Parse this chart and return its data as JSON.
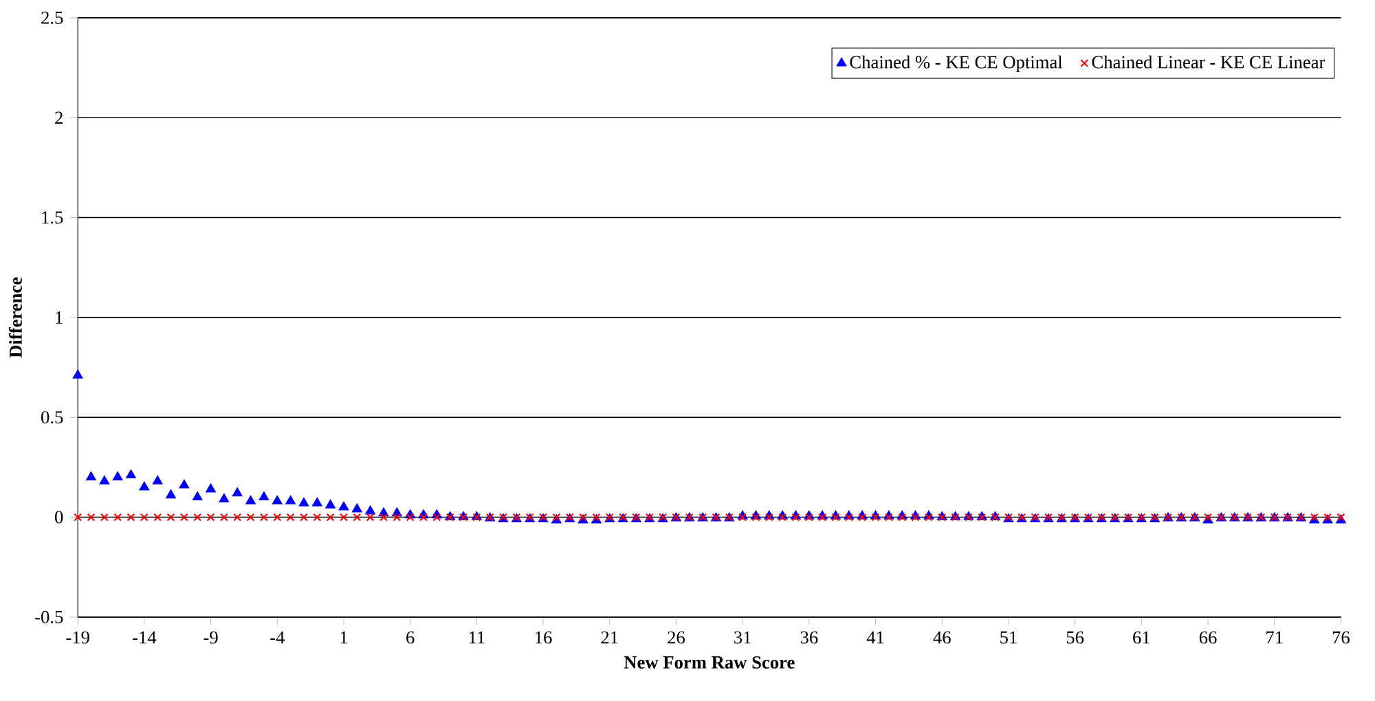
{
  "chart_data": {
    "type": "scatter",
    "xlabel": "New Form Raw Score",
    "ylabel": "Difference",
    "xlim": [
      -19,
      76
    ],
    "xticks": [
      -19,
      -14,
      -9,
      -4,
      1,
      6,
      11,
      16,
      21,
      26,
      31,
      36,
      41,
      46,
      51,
      56,
      61,
      66,
      71,
      76
    ],
    "ylim": [
      -0.5,
      2.5
    ],
    "yticks": [
      -0.5,
      0,
      0.5,
      1,
      1.5,
      2,
      2.5
    ],
    "grid": "y",
    "legend": "top right",
    "x": [
      -19,
      -18,
      -17,
      -16,
      -15,
      -14,
      -13,
      -12,
      -11,
      -10,
      -9,
      -8,
      -7,
      -6,
      -5,
      -4,
      -3,
      -2,
      -1,
      0,
      1,
      2,
      3,
      4,
      5,
      6,
      7,
      8,
      9,
      10,
      11,
      12,
      13,
      14,
      15,
      16,
      17,
      18,
      19,
      20,
      21,
      22,
      23,
      24,
      25,
      26,
      27,
      28,
      29,
      30,
      31,
      32,
      33,
      34,
      35,
      36,
      37,
      38,
      39,
      40,
      41,
      42,
      43,
      44,
      45,
      46,
      47,
      48,
      49,
      50,
      51,
      52,
      53,
      54,
      55,
      56,
      57,
      58,
      59,
      60,
      61,
      62,
      63,
      64,
      65,
      66,
      67,
      68,
      69,
      70,
      71,
      72,
      73,
      74,
      75,
      76
    ],
    "series": [
      {
        "name": "Chained % - KE CE Optimal",
        "color": "#0000ff",
        "marker": "triangle",
        "values": [
          0.71,
          0.2,
          0.18,
          0.2,
          0.21,
          0.15,
          0.18,
          0.11,
          0.16,
          0.1,
          0.14,
          0.09,
          0.12,
          0.08,
          0.1,
          0.08,
          0.08,
          0.07,
          0.07,
          0.06,
          0.05,
          0.04,
          0.03,
          0.02,
          0.02,
          0.01,
          0.01,
          0.01,
          0,
          0,
          0,
          -0.005,
          -0.01,
          -0.01,
          -0.01,
          -0.01,
          -0.015,
          -0.01,
          -0.015,
          -0.015,
          -0.01,
          -0.01,
          -0.01,
          -0.01,
          -0.01,
          -0.005,
          -0.005,
          -0.005,
          -0.005,
          -0.005,
          0.005,
          0.005,
          0.005,
          0.005,
          0.005,
          0.005,
          0.005,
          0.005,
          0.005,
          0.005,
          0.005,
          0.005,
          0.005,
          0.005,
          0.005,
          0,
          0,
          0,
          0,
          0,
          -0.01,
          -0.01,
          -0.01,
          -0.01,
          -0.01,
          -0.01,
          -0.01,
          -0.01,
          -0.01,
          -0.01,
          -0.01,
          -0.01,
          -0.005,
          -0.005,
          -0.005,
          -0.015,
          -0.005,
          -0.005,
          -0.005,
          -0.005,
          -0.005,
          -0.005,
          -0.005,
          -0.015,
          -0.015,
          -0.015
        ]
      },
      {
        "name": "Chained Linear - KE CE Linear",
        "color": "#ff0000",
        "marker": "cross",
        "values": [
          0,
          0,
          0,
          0,
          0,
          0,
          0,
          0,
          0,
          0,
          0,
          0,
          0,
          0,
          0,
          0,
          0,
          0,
          0,
          0,
          0,
          0,
          0,
          0,
          0,
          0,
          0,
          0,
          0,
          0,
          0,
          0,
          0,
          0,
          0,
          0,
          0,
          0,
          0,
          0,
          0,
          0,
          0,
          0,
          0,
          0,
          0,
          0,
          0,
          0,
          0,
          0,
          0,
          0,
          0,
          0,
          0,
          0,
          0,
          0,
          0,
          0,
          0,
          0,
          0,
          0,
          0,
          0,
          0,
          0,
          0,
          0,
          0,
          0,
          0,
          0,
          0,
          0,
          0,
          0,
          0,
          0,
          0,
          0,
          0,
          0,
          0,
          0,
          0,
          0,
          0,
          0,
          0,
          0,
          0,
          0
        ]
      }
    ]
  }
}
